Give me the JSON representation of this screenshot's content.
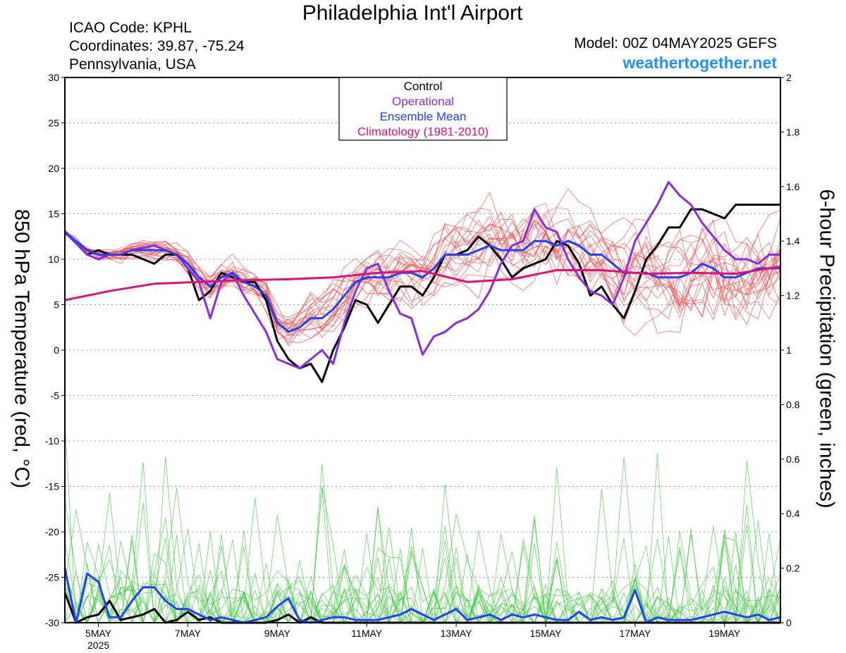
{
  "header": {
    "title": "Philadelphia Int'l Airport",
    "icao": "ICAO Code: KPHL",
    "coords": "Coordinates: 39.87, -75.24",
    "region": "Pennsylvania, USA",
    "model": "Model: 00Z 04MAY2025 GEFS",
    "site": "weathertogether.net"
  },
  "chart_data": {
    "type": "line",
    "title": "Philadelphia Int'l Airport",
    "ylabel_left": "850 hPa Temperature (red, °C)",
    "ylabel_right": "6-hour Precipitation (green, inches)",
    "x_unit": "days from 00Z 04MAY2025",
    "xlim": [
      0,
      16
    ],
    "ylim_left": [
      -30,
      30
    ],
    "ylim_right": [
      0,
      2
    ],
    "yticks_left": [
      "30",
      "25",
      "20",
      "15",
      "10",
      "5",
      "0",
      "-5",
      "-10",
      "-15",
      "-20",
      "-25",
      "-30"
    ],
    "yticks_right": [
      "2",
      "1.8",
      "1.6",
      "1.4",
      "1.2",
      "1",
      "0.8",
      "0.6",
      "0.4",
      "0.2",
      "0"
    ],
    "x_ticks": [
      {
        "day": 0.75,
        "label": "5MAY",
        "sub": "2025"
      },
      {
        "day": 2.75,
        "label": "7MAY"
      },
      {
        "day": 4.75,
        "label": "9MAY"
      },
      {
        "day": 6.75,
        "label": "11MAY"
      },
      {
        "day": 8.75,
        "label": "13MAY"
      },
      {
        "day": 10.75,
        "label": "15MAY"
      },
      {
        "day": 12.75,
        "label": "17MAY"
      },
      {
        "day": 14.75,
        "label": "19MAY"
      }
    ],
    "grid": "dotted horizontal",
    "legend": {
      "position": "top-center",
      "entries": [
        {
          "label": "Control",
          "color": "#000000"
        },
        {
          "label": "Operational",
          "color": "#8a2be2"
        },
        {
          "label": "Ensemble Mean",
          "color": "#2040ff"
        },
        {
          "label": "Climatology (1981-2010)",
          "color": "#e0107a"
        }
      ]
    },
    "temperature_series": [
      {
        "name": "Control",
        "color": "#000000",
        "axis": "left",
        "x": [
          0,
          0.5,
          0.75,
          1,
          1.25,
          1.5,
          2,
          2.25,
          2.5,
          2.75,
          3,
          3.25,
          3.5,
          3.75,
          4,
          4.25,
          4.5,
          4.75,
          5,
          5.25,
          5.5,
          5.75,
          6,
          6.25,
          6.5,
          6.75,
          7,
          7.25,
          7.5,
          7.75,
          8,
          8.25,
          8.5,
          8.75,
          9,
          9.25,
          9.5,
          9.75,
          10,
          10.25,
          10.5,
          10.75,
          11,
          11.25,
          11.5,
          11.75,
          12,
          12.25,
          12.5,
          12.75,
          13,
          13.25,
          13.5,
          13.75,
          14,
          14.25,
          14.5,
          14.75,
          15,
          15.25,
          15.5,
          15.75,
          16
        ],
        "y": [
          13,
          10.5,
          11,
          10.5,
          10.5,
          10.5,
          9.5,
          10.5,
          10.5,
          9,
          5.5,
          6.5,
          8.5,
          8,
          7.5,
          7.5,
          5.5,
          1,
          -1,
          -2,
          -1.5,
          -3.5,
          0,
          2.5,
          5.5,
          5,
          3,
          5,
          7,
          7,
          6,
          8,
          10.5,
          10.5,
          11,
          12.5,
          11.5,
          10,
          8,
          9,
          9.5,
          10,
          12,
          11.5,
          9.5,
          6,
          7,
          5,
          3.5,
          6.5,
          10,
          11.5,
          13.5,
          13.5,
          15.5,
          15.5,
          15,
          14.5,
          16,
          16,
          16,
          16,
          16
        ]
      },
      {
        "name": "Operational",
        "color": "#8a2be2",
        "axis": "left",
        "x": [
          0,
          0.5,
          0.75,
          1,
          1.25,
          1.5,
          2,
          2.25,
          2.5,
          2.75,
          3,
          3.25,
          3.5,
          3.75,
          4,
          4.25,
          4.5,
          4.75,
          5,
          5.25,
          5.5,
          5.75,
          6,
          6.25,
          6.5,
          6.75,
          7,
          7.25,
          7.5,
          7.75,
          8,
          8.25,
          8.5,
          8.75,
          9,
          9.25,
          9.5,
          9.75,
          10,
          10.25,
          10.5,
          10.75,
          11,
          11.25,
          11.5,
          11.75,
          12,
          12.25,
          12.5,
          12.75,
          13,
          13.25,
          13.5,
          13.75,
          14,
          14.25,
          14.5,
          14.75,
          15,
          15.25,
          15.5,
          15.75,
          16
        ],
        "y": [
          13,
          10.5,
          10,
          10.5,
          10.5,
          11,
          11.5,
          11,
          10.5,
          9,
          7.5,
          3.5,
          7.5,
          8.5,
          6,
          4,
          2,
          -1,
          -1.5,
          -2,
          -1,
          0,
          -1.5,
          3,
          6.5,
          9,
          9.5,
          6.5,
          4,
          3.5,
          -0.5,
          1.5,
          2,
          3,
          3.5,
          4.5,
          6.5,
          9.5,
          11.5,
          12,
          15.5,
          13.5,
          13,
          10,
          8,
          6.5,
          6,
          5,
          8,
          12,
          14,
          16,
          18.5,
          17,
          16,
          14,
          12.5,
          11,
          10,
          10,
          9.5,
          10.5,
          10.5
        ]
      },
      {
        "name": "Ensemble Mean",
        "color": "#2040ff",
        "axis": "left",
        "x": [
          0,
          0.5,
          0.75,
          1,
          1.25,
          1.5,
          2,
          2.25,
          2.5,
          2.75,
          3,
          3.25,
          3.5,
          3.75,
          4,
          4.25,
          4.5,
          4.75,
          5,
          5.25,
          5.5,
          5.75,
          6,
          6.25,
          6.5,
          6.75,
          7,
          7.25,
          7.5,
          7.75,
          8,
          8.25,
          8.5,
          8.75,
          9,
          9.25,
          9.5,
          9.75,
          10,
          10.25,
          10.5,
          10.75,
          11,
          11.25,
          11.5,
          11.75,
          12,
          12.25,
          12.5,
          12.75,
          13,
          13.25,
          13.5,
          13.75,
          14,
          14.25,
          14.5,
          14.75,
          15,
          15.25,
          15.5,
          15.75,
          16
        ],
        "y": [
          13,
          11,
          10.5,
          10.5,
          10.5,
          11,
          11,
          11,
          10.5,
          9.5,
          8,
          7,
          8,
          8.5,
          7.5,
          7,
          6,
          3,
          2,
          2.5,
          3.5,
          3.5,
          4.5,
          6,
          7.5,
          8,
          8,
          8,
          8.5,
          8.5,
          8,
          9,
          10.5,
          10.5,
          10.5,
          11,
          11.5,
          11,
          11,
          11,
          12,
          12,
          11.5,
          12,
          11.5,
          10.5,
          10.5,
          9.5,
          8.5,
          8.5,
          8.5,
          8,
          8,
          8,
          8.5,
          9.5,
          9,
          8,
          8,
          8.5,
          9,
          9,
          9
        ]
      },
      {
        "name": "Climatology (1981-2010)",
        "color": "#e0107a",
        "axis": "left",
        "x": [
          0,
          1,
          2,
          3,
          4,
          5,
          6,
          7,
          8,
          9,
          10,
          11,
          12,
          13,
          14,
          15,
          16
        ],
        "y": [
          5.5,
          6.5,
          7.3,
          7.5,
          7.7,
          7.8,
          8,
          8.5,
          8.7,
          7.5,
          7.8,
          8.8,
          8.8,
          8.4,
          8.5,
          8.4,
          9.2
        ]
      }
    ],
    "precip_series": [
      {
        "name": "Control",
        "color": "#000000",
        "axis": "right",
        "x": [
          0,
          0.25,
          0.5,
          0.75,
          1,
          1.25,
          1.5,
          1.75,
          2,
          2.25,
          2.5,
          2.75,
          3,
          3.25,
          3.5,
          3.75,
          4,
          4.25,
          4.5,
          4.75,
          5,
          5.25,
          5.5,
          5.75,
          6,
          6.25,
          6.5,
          6.75,
          7,
          7.25,
          7.5,
          7.75,
          8,
          8.25,
          8.5,
          8.75,
          9,
          9.25,
          9.5,
          9.75,
          10,
          10.25,
          10.5,
          10.75,
          11,
          11.25,
          11.5,
          11.75,
          12,
          12.25,
          12.5,
          12.75,
          13,
          13.25,
          13.5,
          13.75,
          14,
          14.25,
          14.5,
          14.75,
          15,
          15.25,
          15.5,
          15.75,
          16
        ],
        "y": [
          0.11,
          0,
          0.02,
          0.03,
          0.08,
          0.01,
          0.02,
          0.03,
          0.05,
          0,
          0.01,
          0.04,
          0.01,
          0.02,
          0,
          0,
          0,
          0,
          0,
          0.01,
          0.03,
          0,
          0.02,
          0,
          0,
          0,
          0,
          0,
          0,
          0,
          0,
          0,
          0,
          0,
          0,
          0,
          0,
          0,
          0,
          0,
          0,
          0,
          0,
          0,
          0,
          0,
          0,
          0,
          0,
          0,
          0,
          0,
          0,
          0,
          0,
          0,
          0,
          0,
          0,
          0,
          0,
          0,
          0,
          0,
          0
        ]
      },
      {
        "name": "Ensemble Mean",
        "color": "#2040ff",
        "axis": "right",
        "x": [
          0,
          0.25,
          0.5,
          0.75,
          1,
          1.25,
          1.5,
          1.75,
          2,
          2.25,
          2.5,
          2.75,
          3,
          3.25,
          3.5,
          3.75,
          4,
          4.25,
          4.5,
          4.75,
          5,
          5.25,
          5.5,
          5.75,
          6,
          6.25,
          6.5,
          6.75,
          7,
          7.25,
          7.5,
          7.75,
          8,
          8.25,
          8.5,
          8.75,
          9,
          9.25,
          9.5,
          9.75,
          10,
          10.25,
          10.5,
          10.75,
          11,
          11.25,
          11.5,
          11.75,
          12,
          12.25,
          12.5,
          12.75,
          13,
          13.25,
          13.5,
          13.75,
          14,
          14.25,
          14.5,
          14.75,
          15,
          15.25,
          15.5,
          15.75,
          16
        ],
        "y": [
          0.2,
          0,
          0.18,
          0.15,
          0.02,
          0.02,
          0.08,
          0.13,
          0.13,
          0.08,
          0.05,
          0.05,
          0.03,
          0.01,
          0.02,
          0.01,
          0,
          0.01,
          0.02,
          0.06,
          0.09,
          0.01,
          0,
          0.01,
          0.02,
          0.02,
          0.01,
          0.01,
          0.01,
          0.02,
          0.03,
          0.05,
          0.03,
          0.01,
          0.03,
          0.05,
          0.01,
          0.02,
          0.03,
          0.01,
          0.03,
          0.02,
          0.03,
          0.02,
          0.01,
          0.01,
          0.04,
          0.01,
          0.02,
          0.01,
          0.02,
          0.12,
          0,
          0.02,
          0.01,
          0.01,
          0.01,
          0.02,
          0.03,
          0.04,
          0.03,
          0.02,
          0.03,
          0.01,
          0.02
        ]
      }
    ],
    "member_noise": {
      "temperature_members": 20,
      "precip_members": 20,
      "color_temperature": "#ff3b3b",
      "color_precip": "#33cc33"
    }
  }
}
